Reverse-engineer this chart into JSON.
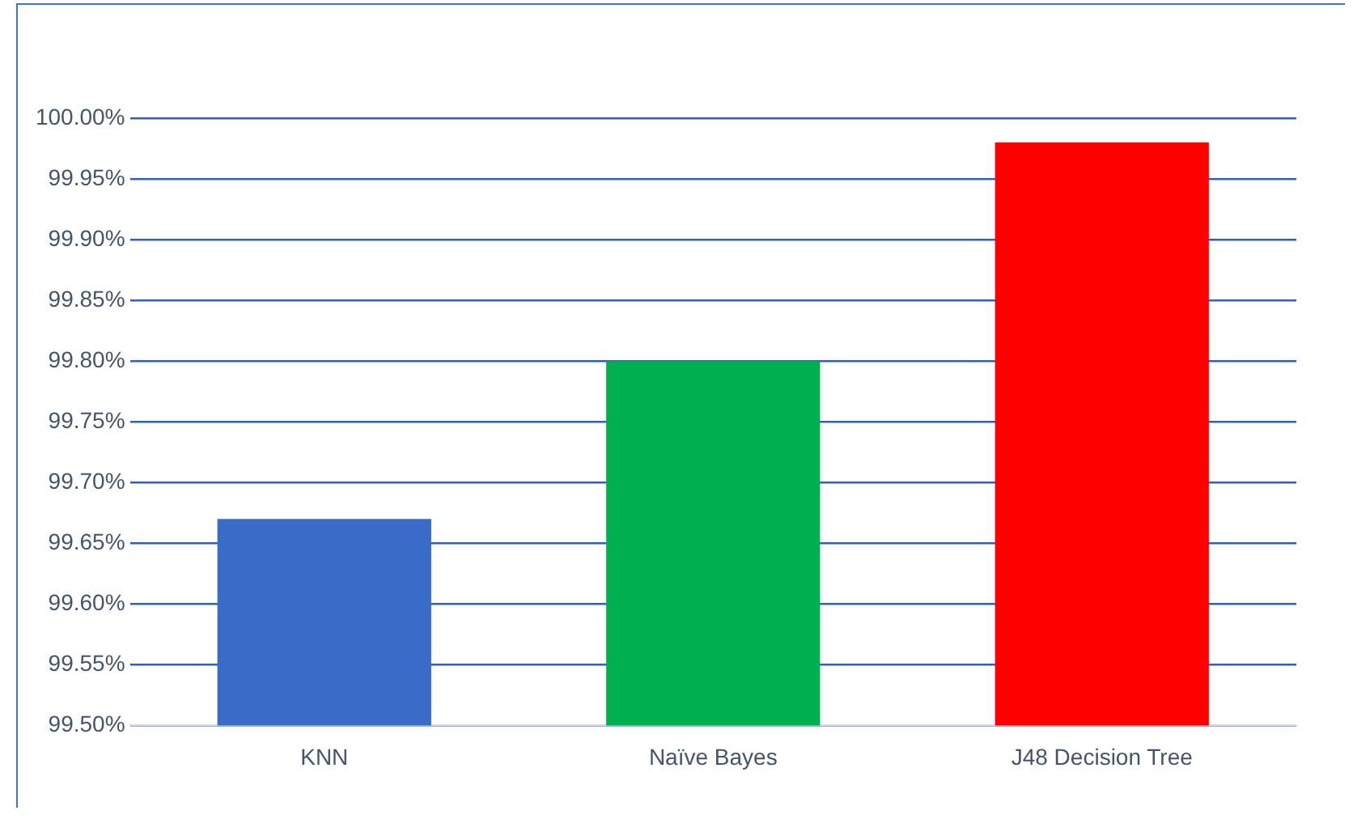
{
  "chart_data": {
    "type": "bar",
    "categories": [
      "KNN",
      "Naïve Bayes",
      "J48 Decision Tree"
    ],
    "values": [
      99.67,
      99.8,
      99.98
    ],
    "colors": [
      "#3a6bc8",
      "#00b050",
      "#ff0000"
    ],
    "ylim": [
      99.5,
      100.0
    ],
    "yticks": [
      {
        "value": 99.5,
        "label": "99.50%"
      },
      {
        "value": 99.55,
        "label": "99.55%"
      },
      {
        "value": 99.6,
        "label": "99.60%"
      },
      {
        "value": 99.65,
        "label": "99.65%"
      },
      {
        "value": 99.7,
        "label": "99.70%"
      },
      {
        "value": 99.75,
        "label": "99.75%"
      },
      {
        "value": 99.8,
        "label": "99.80%"
      },
      {
        "value": 99.85,
        "label": "99.85%"
      },
      {
        "value": 99.9,
        "label": "99.90%"
      },
      {
        "value": 99.95,
        "label": "99.95%"
      },
      {
        "value": 100.0,
        "label": "100.00%"
      }
    ],
    "grid": "y"
  }
}
